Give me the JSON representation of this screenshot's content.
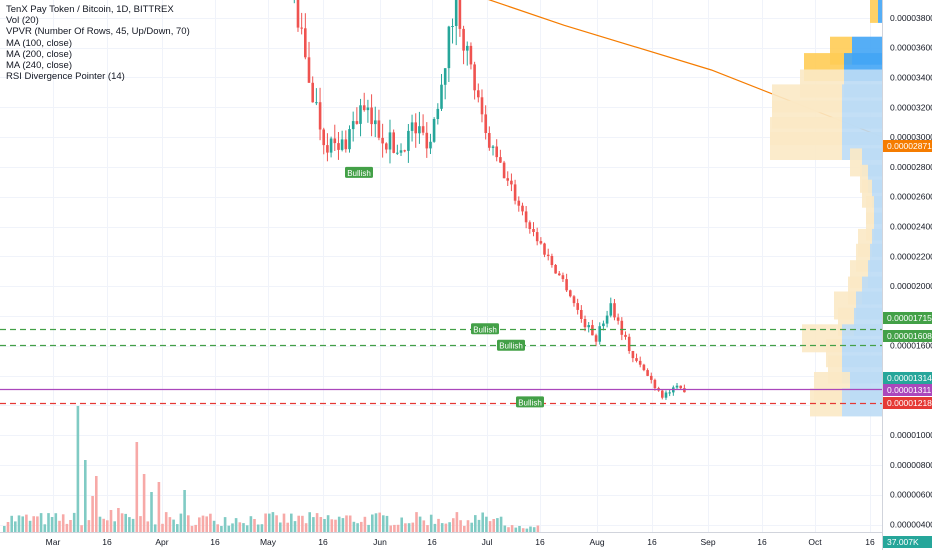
{
  "legend": {
    "symbol": "TenX Pay Token / Bitcoin, 1D, BITTREX",
    "indicators": [
      "Vol (20)",
      "VPVR (Number Of Rows, 45, Up/Down, 70)",
      "MA (100, close)",
      "MA (200, close)",
      "MA (240, close)",
      "RSI Divergence Pointer (14)"
    ]
  },
  "colors": {
    "up": "#26a69a",
    "down": "#ef5350",
    "vol_up": "#80cbc4",
    "vol_down": "#f7a9a7",
    "ma": "#f57c00",
    "vp_up": "#bcdcf5",
    "vp_down": "#fbe9c5",
    "vp_up_hi": "#42a5f5",
    "vp_down_hi": "#ffcc55",
    "signal": "#43a047",
    "support_line": "#e53935",
    "price_line": "#ab47bc"
  },
  "chart_data": {
    "type": "candlestick",
    "y_axis": {
      "min": 3.5e-06,
      "max": 3.92e-05,
      "ticks": [
        "0.00000400",
        "0.00000600",
        "0.00000800",
        "0.00001000",
        "0.00001200",
        "0.00001400",
        "0.00001600",
        "0.00001800",
        "0.00002000",
        "0.00002200",
        "0.00002400",
        "0.00002600",
        "0.00002800",
        "0.00003000",
        "0.00003200",
        "0.00003400",
        "0.00003600",
        "0.00003800"
      ]
    },
    "x_axis": {
      "labels": [
        "Mar",
        "16",
        "Apr",
        "16",
        "May",
        "16",
        "Jun",
        "16",
        "Jul",
        "16",
        "Aug",
        "16",
        "Sep",
        "16",
        "Oct",
        "16"
      ]
    },
    "price_labels": [
      {
        "value": "0.00002871",
        "color": "#f57c00"
      },
      {
        "value": "0.00001715",
        "color": "#43a047"
      },
      {
        "value": "0.00001608",
        "color": "#43a047"
      },
      {
        "value": "0.00001314",
        "color": "#26a69a"
      },
      {
        "value": "0.00001311",
        "color": "#ab47bc"
      },
      {
        "value": "0.00001218",
        "color": "#e53935"
      },
      {
        "value": "37.007K",
        "color": "#26a69a"
      }
    ],
    "horizontal_lines": [
      {
        "price": 1.715e-05,
        "style": "dashed",
        "color": "#43a047"
      },
      {
        "price": 1.608e-05,
        "style": "dashed",
        "color": "#43a047"
      },
      {
        "price": 1.311e-05,
        "style": "solid",
        "color": "#ab47bc"
      },
      {
        "price": 1.218e-05,
        "style": "dashed",
        "color": "#e53935"
      }
    ],
    "signals": [
      {
        "text": "Bullish",
        "date_index": 41,
        "price": 2.76e-05
      },
      {
        "text": "Bullish",
        "date_index": 210,
        "price": 1.71e-05
      },
      {
        "text": "Bullish",
        "date_index": 220,
        "price": 1.6e-05
      },
      {
        "text": "Bullish",
        "date_index": 235,
        "price": 1.22e-05
      }
    ],
    "moving_average": [
      {
        "i": 65,
        "v": 3.96e-05
      },
      {
        "i": 90,
        "v": 3.75e-05
      },
      {
        "i": 130,
        "v": 3.45e-05
      },
      {
        "i": 160,
        "v": 3.16e-05
      },
      {
        "i": 190,
        "v": 2.87e-05
      }
    ],
    "volume_profile": [
      {
        "price": 3.86e-05,
        "up": 4,
        "down": 8,
        "hi": true
      },
      {
        "price": 3.58e-05,
        "up": 30,
        "down": 22,
        "hi": true
      },
      {
        "price": 3.47e-05,
        "up": 38,
        "down": 40,
        "hi": true
      },
      {
        "price": 3.36e-05,
        "up": 38,
        "down": 44,
        "hi": false
      },
      {
        "price": 3.26e-05,
        "up": 40,
        "down": 70,
        "hi": false
      },
      {
        "price": 3.15e-05,
        "up": 40,
        "down": 70,
        "hi": false
      },
      {
        "price": 3.04e-05,
        "up": 40,
        "down": 72,
        "hi": false
      },
      {
        "price": 2.94e-05,
        "up": 40,
        "down": 72,
        "hi": false
      },
      {
        "price": 2.83e-05,
        "up": 20,
        "down": 12,
        "hi": false
      },
      {
        "price": 2.72e-05,
        "up": 14,
        "down": 8,
        "hi": false
      },
      {
        "price": 2.62e-05,
        "up": 10,
        "down": 10,
        "hi": false
      },
      {
        "price": 2.51e-05,
        "up": 8,
        "down": 8,
        "hi": false
      },
      {
        "price": 2.4e-05,
        "up": 8,
        "down": 8,
        "hi": false
      },
      {
        "price": 2.29e-05,
        "up": 10,
        "down": 14,
        "hi": false
      },
      {
        "price": 2.19e-05,
        "up": 12,
        "down": 14,
        "hi": false
      },
      {
        "price": 2.08e-05,
        "up": 14,
        "down": 18,
        "hi": false
      },
      {
        "price": 1.97e-05,
        "up": 20,
        "down": 14,
        "hi": false
      },
      {
        "price": 1.87e-05,
        "up": 26,
        "down": 22,
        "hi": false
      },
      {
        "price": 1.76e-05,
        "up": 28,
        "down": 16,
        "hi": false
      },
      {
        "price": 1.65e-05,
        "up": 40,
        "down": 40,
        "hi": false
      },
      {
        "price": 1.55e-05,
        "up": 40,
        "down": 16,
        "hi": false
      },
      {
        "price": 1.44e-05,
        "up": 40,
        "down": 14,
        "hi": false
      },
      {
        "price": 1.33e-05,
        "up": 32,
        "down": 36,
        "hi": false
      },
      {
        "price": 1.22e-05,
        "up": 40,
        "down": 32,
        "hi": false
      }
    ],
    "candles_segment_targets": [
      {
        "i": 0,
        "v": null
      },
      {
        "i": 72,
        "v": 3.95e-05
      },
      {
        "i": 75,
        "v": 3.5e-05
      },
      {
        "i": 80,
        "v": 3e-05
      },
      {
        "i": 84,
        "v": 2.9e-05
      },
      {
        "i": 90,
        "v": 3.18e-05
      },
      {
        "i": 96,
        "v": 3.02e-05
      },
      {
        "i": 100,
        "v": 2.9e-05
      },
      {
        "i": 104,
        "v": 3.06e-05
      },
      {
        "i": 109,
        "v": 2.98e-05
      },
      {
        "i": 113,
        "v": 3.55e-05
      },
      {
        "i": 116,
        "v": 3.9e-05
      },
      {
        "i": 120,
        "v": 3.45e-05
      },
      {
        "i": 124,
        "v": 3e-05
      },
      {
        "i": 130,
        "v": 2.7e-05
      },
      {
        "i": 136,
        "v": 2.4e-05
      },
      {
        "i": 142,
        "v": 2.15e-05
      },
      {
        "i": 146,
        "v": 2e-05
      },
      {
        "i": 150,
        "v": 1.78e-05
      },
      {
        "i": 154,
        "v": 1.65e-05
      },
      {
        "i": 158,
        "v": 1.88e-05
      },
      {
        "i": 161,
        "v": 1.7e-05
      },
      {
        "i": 164,
        "v": 1.52e-05
      },
      {
        "i": 168,
        "v": 1.4e-05
      },
      {
        "i": 172,
        "v": 1.27e-05
      },
      {
        "i": 176,
        "v": 1.31e-05
      },
      {
        "i": 178,
        "v": 1.31e-05
      }
    ]
  }
}
